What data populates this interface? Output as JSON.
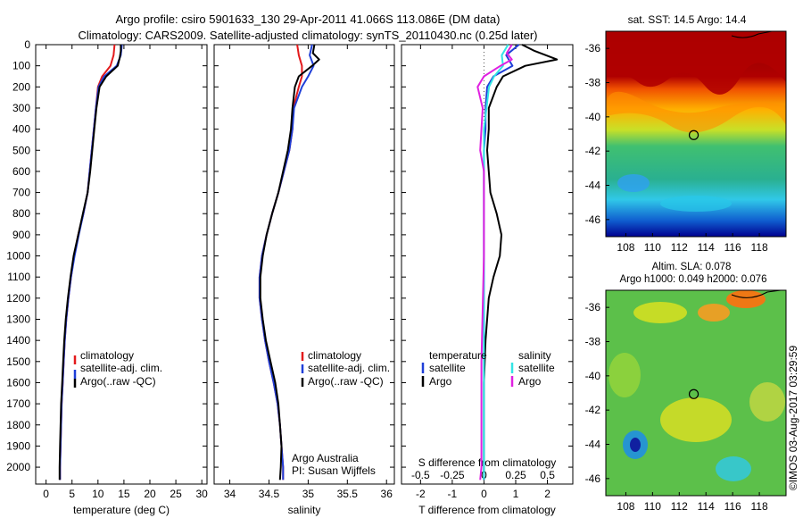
{
  "title_line1": "Argo profile: csiro 5901633_130 29-Apr-2011 41.066S 113.086E (DM data)",
  "title_line2": "Climatology: CARS2009. Satellite-adjusted climatology: synTS_20110430.nc (0.25d later)",
  "sst_title": "sat. SST: 14.5 Argo: 14.4",
  "sla_title1": "Altim. SLA: 0.078",
  "sla_title2": "Argo h1000: 0.049 h2000: 0.076",
  "credit": "©IMOS 03-Aug-2017 03:29:59",
  "argo_australia": "Argo Australia",
  "pi": "PI: Susan Wijffels",
  "colors": {
    "climatology": "#e31a1c",
    "satellite": "#1f3fd8",
    "argo": "#000000",
    "sat_salinity": "#33e5e5",
    "argo_salinity": "#e020e0"
  },
  "legend_tp": {
    "climatology": "climatology",
    "satellite": "satellite-adj. clim.",
    "argo": "Argo(..raw -QC)"
  },
  "legend_diff": {
    "temperature": "temperature",
    "salinity": "salinity",
    "satellite_t": "satellite",
    "satellite_s": "satellite",
    "argo_t": "Argo",
    "argo_s": "Argo"
  },
  "chart_data": [
    {
      "type": "line",
      "title": "",
      "xlabel": "temperature (deg C)",
      "ylabel": "",
      "xlim": [
        -2,
        31
      ],
      "ylim": [
        2080,
        0
      ],
      "xticks": [
        "0",
        "5",
        "10",
        "15",
        "20",
        "25",
        "30"
      ],
      "xtick_values": [
        0,
        5,
        10,
        15,
        20,
        25,
        30
      ],
      "yticks": [
        "0",
        "100",
        "200",
        "300",
        "400",
        "500",
        "600",
        "700",
        "800",
        "900",
        "1000",
        "1100",
        "1200",
        "1300",
        "1400",
        "1500",
        "1600",
        "1700",
        "1800",
        "1900",
        "2000"
      ],
      "ytick_values": [
        0,
        100,
        200,
        300,
        400,
        500,
        600,
        700,
        800,
        900,
        1000,
        1100,
        1200,
        1300,
        1400,
        1500,
        1600,
        1700,
        1800,
        1900,
        2000
      ],
      "series": [
        {
          "name": "climatology",
          "color": "#e31a1c",
          "depth": [
            0,
            50,
            100,
            150,
            200,
            300,
            400,
            500,
            600,
            700,
            800,
            900,
            1000,
            1100,
            1200,
            1300,
            1400,
            1500,
            1600,
            1700,
            1800,
            1900,
            2000,
            2060
          ],
          "values": [
            13.2,
            13.0,
            12.4,
            10.8,
            10.0,
            9.6,
            9.2,
            8.8,
            8.4,
            8.0,
            7.2,
            6.2,
            5.4,
            4.8,
            4.3,
            3.9,
            3.6,
            3.4,
            3.2,
            3.0,
            2.9,
            2.8,
            2.7,
            2.7
          ]
        },
        {
          "name": "satellite-adj. clim.",
          "color": "#1f3fd8",
          "depth": [
            0,
            50,
            100,
            150,
            200,
            300,
            400,
            500,
            600,
            700,
            800,
            900,
            1000,
            1100,
            1200,
            1300,
            1400,
            1500,
            1600,
            1700,
            1800,
            1900,
            2000,
            2060
          ],
          "values": [
            14.6,
            14.4,
            13.6,
            11.2,
            10.1,
            9.6,
            9.2,
            8.8,
            8.4,
            8.0,
            7.2,
            6.3,
            5.5,
            4.8,
            4.3,
            3.9,
            3.6,
            3.4,
            3.2,
            3.0,
            2.9,
            2.8,
            2.7,
            2.7
          ]
        },
        {
          "name": "Argo(..raw -QC)",
          "color": "#000000",
          "depth": [
            0,
            30,
            60,
            100,
            150,
            200,
            300,
            400,
            500,
            600,
            700,
            800,
            900,
            1000,
            1100,
            1200,
            1300,
            1400,
            1500,
            1600,
            1700,
            1800,
            1900,
            2000,
            2060
          ],
          "values": [
            14.4,
            14.4,
            14.2,
            13.8,
            11.6,
            10.3,
            9.7,
            9.3,
            8.9,
            8.5,
            8.0,
            7.1,
            6.2,
            5.3,
            4.7,
            4.2,
            3.8,
            3.5,
            3.3,
            3.1,
            2.9,
            2.8,
            2.7,
            2.6,
            2.6
          ]
        }
      ]
    },
    {
      "type": "line",
      "title": "",
      "xlabel": "salinity",
      "ylabel": "",
      "xlim": [
        33.8,
        36.1
      ],
      "ylim": [
        2080,
        0
      ],
      "xticks": [
        "34",
        "34.5",
        "35",
        "35.5",
        "36"
      ],
      "xtick_values": [
        34,
        34.5,
        35,
        35.5,
        36
      ],
      "series": [
        {
          "name": "climatology",
          "color": "#e31a1c",
          "depth": [
            0,
            50,
            100,
            150,
            200,
            300,
            400,
            500,
            600,
            700,
            800,
            900,
            1000,
            1100,
            1200,
            1300,
            1400,
            1500,
            1600,
            1700,
            1800,
            1900,
            2000,
            2060
          ],
          "values": [
            34.86,
            34.88,
            34.92,
            34.92,
            34.88,
            34.81,
            34.8,
            34.76,
            34.69,
            34.62,
            34.54,
            34.47,
            34.41,
            34.38,
            34.38,
            34.41,
            34.45,
            34.5,
            34.56,
            34.61,
            34.64,
            34.66,
            34.68,
            34.68
          ]
        },
        {
          "name": "satellite-adj. clim.",
          "color": "#1f3fd8",
          "depth": [
            0,
            50,
            100,
            150,
            200,
            300,
            400,
            500,
            600,
            700,
            800,
            900,
            1000,
            1100,
            1200,
            1300,
            1400,
            1500,
            1600,
            1700,
            1800,
            1900,
            2000,
            2060
          ],
          "values": [
            35.05,
            35.02,
            35.07,
            35.0,
            34.92,
            34.82,
            34.8,
            34.76,
            34.69,
            34.62,
            34.54,
            34.47,
            34.41,
            34.38,
            34.38,
            34.41,
            34.45,
            34.5,
            34.56,
            34.61,
            34.64,
            34.66,
            34.68,
            34.68
          ]
        },
        {
          "name": "Argo(..raw -QC)",
          "color": "#000000",
          "depth": [
            0,
            40,
            70,
            100,
            150,
            200,
            300,
            400,
            500,
            600,
            700,
            800,
            900,
            1000,
            1100,
            1200,
            1300,
            1400,
            1500,
            1600,
            1700,
            1800,
            1900,
            2000,
            2060
          ],
          "values": [
            35.08,
            35.06,
            35.14,
            35.05,
            34.88,
            34.83,
            34.8,
            34.78,
            34.74,
            34.68,
            34.62,
            34.54,
            34.47,
            34.42,
            34.39,
            34.39,
            34.42,
            34.46,
            34.52,
            34.58,
            34.62,
            34.64,
            34.66,
            34.65,
            34.64
          ]
        }
      ]
    },
    {
      "type": "line",
      "title": "",
      "xlabel": "T difference from climatology",
      "xlabel2": "S difference from climatology",
      "ylabel": "",
      "xlim": [
        -2.6,
        2.8
      ],
      "ylim": [
        2080,
        0
      ],
      "xticks": [
        "-2",
        "-1",
        "0",
        "1",
        "2"
      ],
      "xtick_values": [
        -2,
        -1,
        0,
        1,
        2
      ],
      "xticks_top": [
        "-0.5",
        "-0.25",
        "0",
        "0.25",
        "0.5"
      ],
      "xtick_top_values": [
        -0.5,
        -0.25,
        0,
        0.25,
        0.5
      ],
      "series": [
        {
          "name": "temperature satellite",
          "color": "#1f3fd8",
          "depth": [
            0,
            50,
            100,
            150,
            200,
            300,
            400,
            500,
            600,
            800,
            1000,
            1200,
            1500,
            2000,
            2060
          ],
          "values": [
            1.1,
            0.7,
            0.9,
            0.3,
            0.1,
            0.05,
            0.05,
            0.0,
            0.0,
            0.0,
            0.0,
            0.0,
            0.0,
            0.0,
            0.0
          ]
        },
        {
          "name": "temperature Argo",
          "color": "#000000",
          "depth": [
            0,
            30,
            70,
            100,
            150,
            200,
            300,
            400,
            500,
            600,
            700,
            800,
            900,
            1000,
            1100,
            1200,
            1400,
            1600,
            2000,
            2060
          ],
          "values": [
            1.2,
            1.6,
            2.3,
            1.3,
            0.6,
            0.4,
            0.15,
            0.15,
            0.1,
            0.15,
            0.2,
            0.4,
            0.55,
            0.5,
            0.3,
            0.15,
            0.05,
            0.0,
            0.0,
            0.0
          ]
        },
        {
          "name": "salinity satellite",
          "color": "#33e5e5",
          "depth": [
            0,
            50,
            100,
            150,
            200,
            300,
            400,
            500,
            600,
            800,
            1000,
            1200,
            1500,
            2000,
            2060
          ],
          "values": [
            0.19,
            0.14,
            0.15,
            0.08,
            0.04,
            0.02,
            0.0,
            0.0,
            0.0,
            0.0,
            0.0,
            0.0,
            0.0,
            0.0,
            0.0
          ]
        },
        {
          "name": "salinity Argo",
          "color": "#e020e0",
          "depth": [
            0,
            40,
            70,
            100,
            150,
            200,
            300,
            400,
            500,
            600,
            800,
            1000,
            1500,
            2000,
            2060
          ],
          "values": [
            0.22,
            0.18,
            0.22,
            0.13,
            0.0,
            -0.05,
            -0.01,
            -0.02,
            -0.03,
            0.0,
            0.0,
            0.0,
            -0.02,
            -0.02,
            -0.03
          ]
        }
      ]
    },
    {
      "type": "heatmap",
      "title": "sat. SST: 14.5 Argo: 14.4",
      "xlim": [
        106.5,
        120
      ],
      "ylim": [
        -47,
        -35
      ],
      "xticks": [
        "108",
        "110",
        "112",
        "114",
        "116",
        "118"
      ],
      "xtick_values": [
        108,
        110,
        112,
        114,
        116,
        118
      ],
      "yticks": [
        "-36",
        "-38",
        "-40",
        "-42",
        "-44",
        "-46"
      ],
      "ytick_values": [
        -36,
        -38,
        -40,
        -42,
        -44,
        -46
      ],
      "argo_position": [
        113.086,
        -41.066
      ]
    },
    {
      "type": "heatmap",
      "title": "Altim. SLA: 0.078",
      "xlim": [
        106.5,
        120
      ],
      "ylim": [
        -47,
        -35
      ],
      "xticks": [
        "108",
        "110",
        "112",
        "114",
        "116",
        "118"
      ],
      "xtick_values": [
        108,
        110,
        112,
        114,
        116,
        118
      ],
      "yticks": [
        "-36",
        "-38",
        "-40",
        "-42",
        "-44",
        "-46"
      ],
      "ytick_values": [
        -36,
        -38,
        -40,
        -42,
        -44,
        -46
      ],
      "argo_position": [
        113.086,
        -41.066
      ]
    }
  ]
}
